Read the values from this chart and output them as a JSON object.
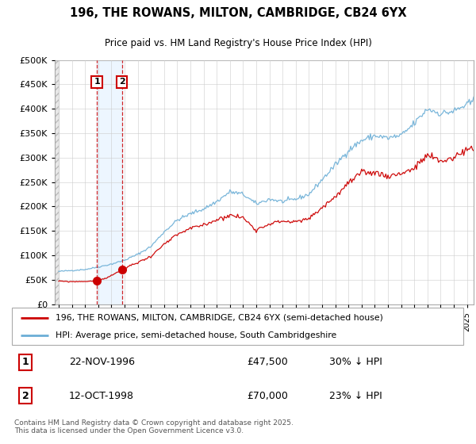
{
  "title_line1": "196, THE ROWANS, MILTON, CAMBRIDGE, CB24 6YX",
  "title_line2": "Price paid vs. HM Land Registry's House Price Index (HPI)",
  "legend_line1": "196, THE ROWANS, MILTON, CAMBRIDGE, CB24 6YX (semi-detached house)",
  "legend_line2": "HPI: Average price, semi-detached house, South Cambridgeshire",
  "transaction1_date": "22-NOV-1996",
  "transaction1_price": "£47,500",
  "transaction1_hpi": "30% ↓ HPI",
  "transaction1_year": 1996.9,
  "transaction1_value": 47500,
  "transaction2_date": "12-OCT-1998",
  "transaction2_price": "£70,000",
  "transaction2_hpi": "23% ↓ HPI",
  "transaction2_year": 1998.8,
  "transaction2_value": 70000,
  "hpi_color": "#6baed6",
  "price_color": "#cc0000",
  "annotation_box_color": "#cc0000",
  "background_color": "#ffffff",
  "ylim": [
    0,
    500000
  ],
  "xmin": 1993.7,
  "xmax": 2025.5,
  "footer": "Contains HM Land Registry data © Crown copyright and database right 2025.\nThis data is licensed under the Open Government Licence v3.0.",
  "grid_color": "#cccccc",
  "hpi_segments": [
    [
      1994.0,
      67000
    ],
    [
      1995.0,
      69000
    ],
    [
      1996.0,
      71000
    ],
    [
      1997.0,
      76000
    ],
    [
      1998.0,
      82000
    ],
    [
      1999.0,
      90000
    ],
    [
      2000.0,
      102000
    ],
    [
      2001.0,
      118000
    ],
    [
      2002.0,
      148000
    ],
    [
      2003.0,
      172000
    ],
    [
      2004.0,
      185000
    ],
    [
      2005.0,
      195000
    ],
    [
      2006.0,
      210000
    ],
    [
      2007.0,
      230000
    ],
    [
      2008.0,
      225000
    ],
    [
      2009.0,
      205000
    ],
    [
      2010.0,
      215000
    ],
    [
      2011.0,
      210000
    ],
    [
      2012.0,
      215000
    ],
    [
      2013.0,
      225000
    ],
    [
      2014.0,
      255000
    ],
    [
      2015.0,
      285000
    ],
    [
      2016.0,
      315000
    ],
    [
      2017.0,
      335000
    ],
    [
      2018.0,
      345000
    ],
    [
      2019.0,
      340000
    ],
    [
      2020.0,
      345000
    ],
    [
      2021.0,
      370000
    ],
    [
      2022.0,
      400000
    ],
    [
      2023.0,
      390000
    ],
    [
      2024.0,
      395000
    ],
    [
      2025.5,
      415000
    ]
  ],
  "price_segments": [
    [
      1994.0,
      47000
    ],
    [
      1995.0,
      46000
    ],
    [
      1996.0,
      46500
    ],
    [
      1996.9,
      47500
    ],
    [
      1997.5,
      52000
    ],
    [
      1998.8,
      70000
    ],
    [
      1999.5,
      80000
    ],
    [
      2000.0,
      85000
    ],
    [
      2001.0,
      98000
    ],
    [
      2002.0,
      122000
    ],
    [
      2003.0,
      142000
    ],
    [
      2004.0,
      155000
    ],
    [
      2005.0,
      162000
    ],
    [
      2006.0,
      173000
    ],
    [
      2007.0,
      182000
    ],
    [
      2008.0,
      177000
    ],
    [
      2009.0,
      152000
    ],
    [
      2010.0,
      165000
    ],
    [
      2011.0,
      170000
    ],
    [
      2012.0,
      168000
    ],
    [
      2013.0,
      175000
    ],
    [
      2014.0,
      198000
    ],
    [
      2015.0,
      220000
    ],
    [
      2016.0,
      248000
    ],
    [
      2017.0,
      268000
    ],
    [
      2018.0,
      270000
    ],
    [
      2019.0,
      262000
    ],
    [
      2020.0,
      268000
    ],
    [
      2021.0,
      278000
    ],
    [
      2022.0,
      305000
    ],
    [
      2023.0,
      292000
    ],
    [
      2024.0,
      300000
    ],
    [
      2025.0,
      318000
    ]
  ]
}
